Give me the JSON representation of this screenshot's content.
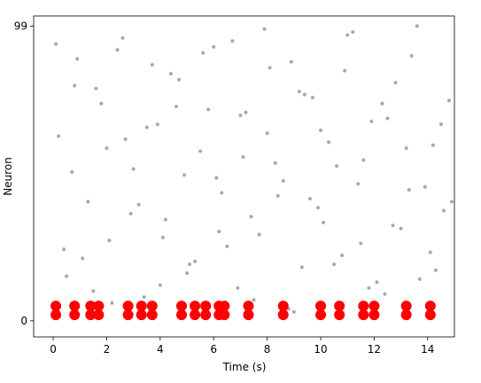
{
  "chart_data": {
    "type": "scatter",
    "x_label": "Time (s)",
    "y_label": "Neuron",
    "xlim": [
      -0.73,
      15.0
    ],
    "ylim": [
      -5.4,
      102.4
    ],
    "xticks": [
      0,
      2,
      4,
      6,
      8,
      10,
      12,
      14
    ],
    "yticks": [
      0,
      99
    ],
    "series": [
      {
        "color": "#a9a9a9",
        "marker_size": 2,
        "x": [
          0.2,
          0.5,
          0.9,
          1.3,
          1.8,
          2.1,
          2.6,
          3.0,
          3.4,
          3.9,
          4.2,
          4.7,
          5.1,
          5.5,
          6.0,
          6.3,
          6.9,
          7.2,
          7.7,
          8.1,
          8.6,
          9.0,
          9.4,
          9.9,
          10.3,
          10.8,
          11.2,
          11.6,
          12.1,
          12.5,
          13.0,
          13.4,
          13.9,
          14.3,
          14.8,
          0.4,
          0.8,
          1.5,
          2.0,
          2.4,
          2.9,
          3.5,
          4.0,
          4.4,
          4.9,
          5.3,
          5.8,
          6.2,
          6.7,
          7.1,
          7.5,
          8.0,
          8.4,
          8.9,
          9.3,
          9.7,
          10.1,
          10.6,
          11.0,
          11.5,
          11.9,
          12.4,
          12.8,
          13.3,
          13.7,
          14.2,
          14.6,
          0.1,
          0.7,
          1.1,
          1.6,
          2.2,
          2.7,
          3.2,
          3.7,
          4.1,
          4.6,
          5.0,
          5.6,
          6.1,
          6.5,
          7.0,
          7.4,
          7.9,
          8.3,
          8.8,
          9.2,
          9.6,
          10.0,
          10.5,
          10.9,
          11.4,
          11.8,
          12.3,
          12.7,
          13.2,
          13.6,
          14.1,
          14.5,
          14.9
        ],
        "y": [
          62,
          15,
          88,
          40,
          73,
          27,
          95,
          51,
          8,
          66,
          34,
          81,
          19,
          57,
          92,
          43,
          11,
          70,
          29,
          85,
          47,
          3,
          76,
          38,
          60,
          22,
          97,
          54,
          13,
          68,
          31,
          89,
          45,
          17,
          74,
          24,
          79,
          10,
          58,
          91,
          36,
          65,
          12,
          83,
          49,
          20,
          71,
          30,
          94,
          55,
          7,
          63,
          42,
          87,
          18,
          75,
          33,
          52,
          96,
          26,
          67,
          9,
          80,
          44,
          14,
          59,
          37,
          93,
          50,
          21,
          78,
          6,
          61,
          39,
          86,
          28,
          72,
          16,
          90,
          48,
          25,
          69,
          35,
          98,
          53,
          4,
          77,
          41,
          64,
          19,
          84,
          46,
          11,
          73,
          32,
          58,
          99,
          23,
          66,
          40
        ],
        "marker_size_note": null
      },
      {
        "color": "#ff0000",
        "marker_size": 6,
        "x": [
          0.1,
          0.8,
          1.4,
          1.7,
          2.8,
          3.3,
          3.7,
          4.8,
          5.3,
          5.7,
          6.2,
          6.4,
          7.3,
          8.6,
          10.0,
          10.7,
          11.6,
          12.0,
          13.2,
          14.1,
          0.1,
          0.8,
          1.4,
          1.7,
          2.8,
          3.3,
          3.7,
          4.8,
          5.3,
          5.7,
          6.2,
          6.4,
          7.3,
          8.6,
          10.0,
          10.7,
          11.6,
          12.0,
          13.2,
          14.1
        ],
        "y": [
          2,
          2,
          2,
          2,
          2,
          2,
          2,
          2,
          2,
          2,
          2,
          2,
          2,
          2,
          2,
          2,
          2,
          2,
          2,
          2,
          5,
          5,
          5,
          5,
          5,
          5,
          5,
          5,
          5,
          5,
          5,
          5,
          5,
          5,
          5,
          5,
          5,
          5,
          5,
          5
        ]
      }
    ]
  }
}
